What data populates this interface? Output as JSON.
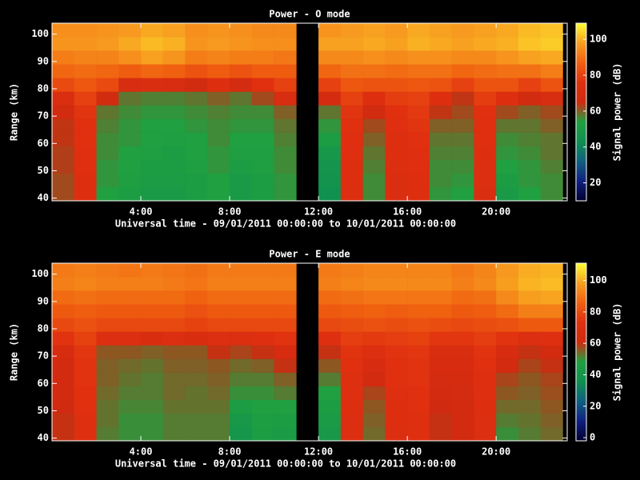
{
  "chart_data": [
    {
      "type": "heatmap",
      "title": "Power - O mode",
      "x_label": "Universal time - 09/01/2011 00:00:00 to 10/01/2011 00:00:00",
      "y_label": "Range (km)",
      "colorbar_label": "Signal power (dB)",
      "x": [
        0.5,
        1.5,
        2.5,
        3.5,
        4.5,
        5.5,
        6.5,
        7.5,
        8.5,
        9.5,
        10.5,
        11.5,
        12.5,
        13.5,
        14.5,
        15.5,
        16.5,
        17.5,
        18.5,
        19.5,
        20.5,
        21.5,
        22.5
      ],
      "y": [
        41.5,
        46.5,
        51.5,
        56.5,
        61.5,
        66.5,
        71.5,
        76.5,
        81.5,
        86.5,
        91.5,
        96.5,
        101.5
      ],
      "z": [
        [
          62,
          62,
          63,
          63,
          64,
          64,
          66,
          72,
          82,
          88,
          92,
          96,
          95
        ],
        [
          74,
          74,
          75,
          75,
          76,
          76,
          77,
          80,
          85,
          89,
          93,
          96,
          95
        ],
        [
          54,
          55,
          55,
          56,
          56,
          57,
          58,
          66,
          82,
          88,
          93,
          97,
          96
        ],
        [
          52,
          53,
          54,
          54,
          55,
          55,
          56,
          58,
          70,
          86,
          95,
          99,
          97
        ],
        [
          50,
          51,
          52,
          53,
          54,
          54,
          55,
          57,
          72,
          88,
          98,
          101,
          99
        ],
        [
          50,
          51,
          52,
          52,
          53,
          54,
          55,
          57,
          70,
          87,
          96,
          100,
          98
        ],
        [
          52,
          52,
          53,
          54,
          54,
          55,
          56,
          58,
          66,
          84,
          92,
          96,
          95
        ],
        [
          54,
          54,
          55,
          55,
          56,
          56,
          57,
          60,
          74,
          86,
          93,
          97,
          96
        ],
        [
          50,
          50,
          52,
          53,
          54,
          55,
          56,
          58,
          68,
          84,
          92,
          96,
          95
        ],
        [
          52,
          52,
          53,
          53,
          54,
          55,
          56,
          62,
          76,
          86,
          92,
          95,
          94
        ],
        [
          55,
          55,
          56,
          56,
          57,
          58,
          60,
          70,
          80,
          86,
          91,
          95,
          94
        ],
        null,
        [
          44,
          45,
          46,
          48,
          52,
          55,
          58,
          68,
          80,
          88,
          94,
          98,
          96
        ],
        [
          73,
          74,
          74,
          75,
          75,
          76,
          77,
          80,
          85,
          90,
          94,
          98,
          97
        ],
        [
          56,
          56,
          57,
          58,
          60,
          62,
          66,
          74,
          84,
          90,
          95,
          99,
          98
        ],
        [
          72,
          72,
          73,
          74,
          74,
          75,
          76,
          79,
          84,
          89,
          94,
          98,
          97
        ],
        [
          74,
          74,
          75,
          75,
          76,
          77,
          78,
          80,
          85,
          90,
          95,
          100,
          99
        ],
        [
          55,
          56,
          56,
          57,
          58,
          60,
          64,
          74,
          84,
          90,
          95,
          99,
          98
        ],
        [
          54,
          55,
          56,
          57,
          58,
          60,
          62,
          64,
          80,
          88,
          94,
          98,
          97
        ],
        [
          72,
          73,
          73,
          74,
          75,
          75,
          76,
          79,
          84,
          89,
          94,
          99,
          98
        ],
        [
          50,
          52,
          54,
          55,
          56,
          58,
          62,
          74,
          84,
          90,
          96,
          100,
          99
        ],
        [
          54,
          55,
          55,
          56,
          57,
          58,
          60,
          66,
          80,
          90,
          98,
          102,
          101
        ],
        [
          56,
          56,
          57,
          58,
          58,
          60,
          62,
          70,
          84,
          92,
          99,
          103,
          102
        ]
      ],
      "xlim": [
        0,
        23.2
      ],
      "ylim": [
        39,
        104
      ],
      "xticks": [
        {
          "value": 4,
          "label": "4:00"
        },
        {
          "value": 8,
          "label": "8:00"
        },
        {
          "value": 12,
          "label": "12:00"
        },
        {
          "value": 16,
          "label": "16:00"
        },
        {
          "value": 20,
          "label": "20:00"
        }
      ],
      "yticks": [
        40,
        50,
        60,
        70,
        80,
        90,
        100
      ],
      "clim": [
        10,
        109
      ],
      "cticks": [
        20,
        40,
        60,
        80,
        100
      ],
      "colormap": [
        "#000030",
        "#102080",
        "#106080",
        "#109050",
        "#20a040",
        "#d02a10",
        "#e03010",
        "#f06010",
        "#f8a020",
        "#ffff30"
      ]
    },
    {
      "type": "heatmap",
      "title": "Power - E mode",
      "x_label": "Universal time - 09/01/2011 00:00:00 to 10/01/2011 00:00:00",
      "y_label": "Range (km)",
      "colorbar_label": "Signal power (dB)",
      "x": [
        0.5,
        1.5,
        2.5,
        3.5,
        4.5,
        5.5,
        6.5,
        7.5,
        8.5,
        9.5,
        10.5,
        11.5,
        12.5,
        13.5,
        14.5,
        15.5,
        16.5,
        17.5,
        18.5,
        19.5,
        20.5,
        21.5,
        22.5
      ],
      "y": [
        41.5,
        46.5,
        51.5,
        56.5,
        61.5,
        66.5,
        71.5,
        76.5,
        81.5,
        86.5,
        91.5,
        96.5,
        101.5
      ],
      "z": [
        [
          60,
          60,
          61,
          62,
          62,
          63,
          66,
          74,
          80,
          84,
          88,
          92,
          91
        ],
        [
          72,
          72,
          73,
          73,
          74,
          74,
          75,
          78,
          82,
          85,
          89,
          93,
          92
        ],
        [
          52,
          53,
          53,
          54,
          55,
          55,
          56,
          70,
          80,
          84,
          88,
          92,
          91
        ],
        [
          50,
          50,
          51,
          52,
          53,
          54,
          56,
          70,
          80,
          84,
          88,
          92,
          90
        ],
        [
          50,
          50,
          51,
          52,
          52,
          53,
          55,
          68,
          80,
          84,
          88,
          92,
          91
        ],
        [
          52,
          52,
          53,
          54,
          54,
          55,
          56,
          70,
          80,
          84,
          88,
          91,
          90
        ],
        [
          52,
          52,
          53,
          53,
          54,
          55,
          56,
          68,
          78,
          82,
          86,
          90,
          89
        ],
        [
          52,
          52,
          53,
          54,
          55,
          56,
          60,
          70,
          80,
          84,
          88,
          92,
          91
        ],
        [
          40,
          42,
          46,
          50,
          52,
          54,
          58,
          70,
          80,
          84,
          88,
          92,
          91
        ],
        [
          46,
          47,
          48,
          50,
          52,
          55,
          60,
          72,
          80,
          84,
          88,
          92,
          91
        ],
        [
          44,
          46,
          48,
          52,
          55,
          60,
          66,
          74,
          80,
          84,
          88,
          92,
          91
        ],
        null,
        [
          42,
          44,
          46,
          48,
          52,
          56,
          60,
          72,
          80,
          84,
          88,
          92,
          91
        ],
        [
          70,
          70,
          71,
          72,
          72,
          73,
          74,
          77,
          81,
          85,
          89,
          93,
          92
        ],
        [
          54,
          55,
          56,
          58,
          62,
          66,
          70,
          76,
          82,
          86,
          90,
          94,
          93
        ],
        [
          70,
          71,
          71,
          72,
          73,
          73,
          74,
          77,
          81,
          85,
          90,
          94,
          93
        ],
        [
          72,
          72,
          73,
          73,
          74,
          74,
          75,
          78,
          82,
          86,
          90,
          94,
          93
        ],
        [
          60,
          60,
          61,
          62,
          64,
          66,
          68,
          75,
          81,
          86,
          90,
          94,
          93
        ],
        [
          62,
          62,
          63,
          64,
          65,
          66,
          68,
          75,
          80,
          84,
          88,
          92,
          91
        ],
        [
          70,
          70,
          71,
          72,
          72,
          73,
          74,
          77,
          81,
          85,
          89,
          94,
          93
        ],
        [
          50,
          52,
          54,
          56,
          58,
          62,
          66,
          74,
          82,
          88,
          94,
          98,
          97
        ],
        [
          52,
          53,
          54,
          55,
          56,
          58,
          60,
          70,
          84,
          92,
          98,
          101,
          100
        ],
        [
          54,
          55,
          56,
          57,
          58,
          60,
          62,
          72,
          84,
          92,
          99,
          102,
          101
        ]
      ],
      "xlim": [
        0,
        23.2
      ],
      "ylim": [
        39,
        104
      ],
      "xticks": [
        {
          "value": 4,
          "label": "4:00"
        },
        {
          "value": 8,
          "label": "8:00"
        },
        {
          "value": 12,
          "label": "12:00"
        },
        {
          "value": 16,
          "label": "16:00"
        },
        {
          "value": 20,
          "label": "20:00"
        }
      ],
      "yticks": [
        40,
        50,
        60,
        70,
        80,
        90,
        100
      ],
      "clim": [
        -2,
        111
      ],
      "cticks": [
        0,
        20,
        40,
        60,
        80,
        100
      ],
      "colormap": [
        "#000030",
        "#102080",
        "#106080",
        "#109050",
        "#20a040",
        "#d02a10",
        "#e03010",
        "#f06010",
        "#f8a020",
        "#ffff30"
      ]
    }
  ]
}
